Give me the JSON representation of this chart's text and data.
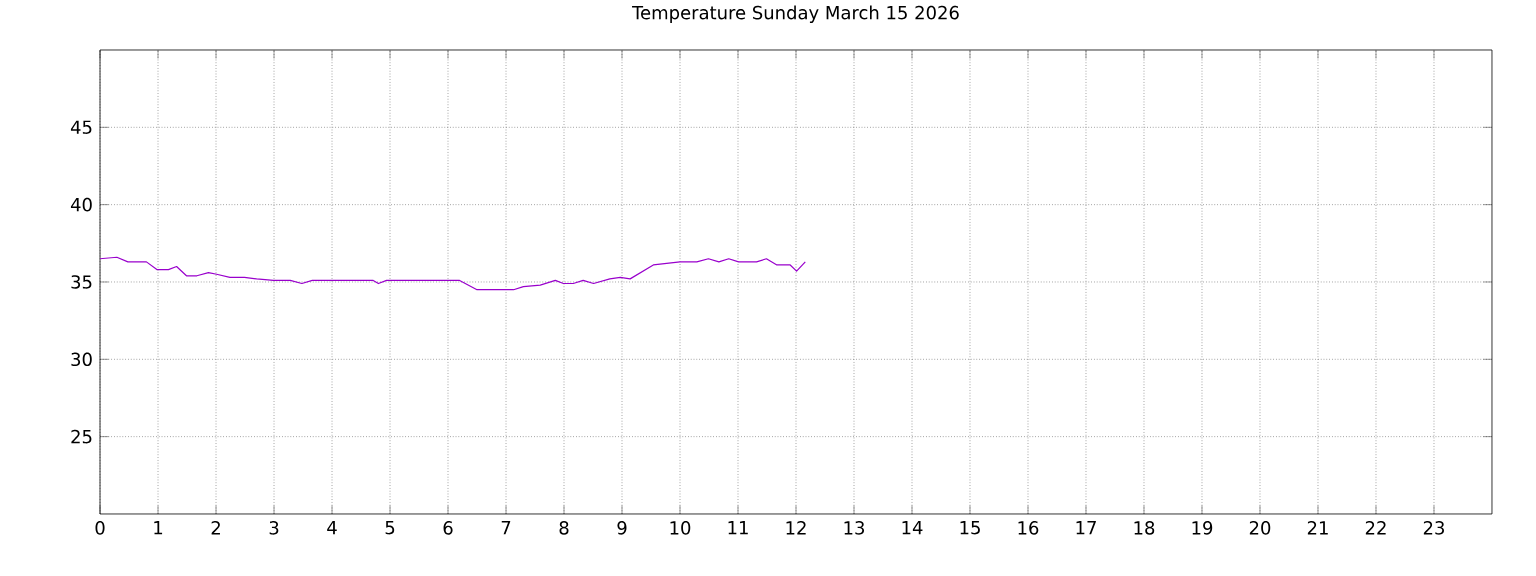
{
  "chart_data": {
    "type": "line",
    "title": "Temperature Sunday March 15 2026",
    "x": [
      0,
      0.29,
      0.48,
      0.8,
      0.98,
      1.18,
      1.32,
      1.49,
      1.67,
      1.87,
      2.01,
      2.24,
      2.49,
      2.7,
      2.99,
      3.28,
      3.48,
      3.66,
      4.71,
      4.8,
      4.94,
      6.2,
      6.5,
      7.13,
      7.3,
      7.59,
      7.85,
      7.99,
      8.16,
      8.33,
      8.51,
      8.79,
      8.97,
      9.14,
      9.54,
      10,
      10.29,
      10.49,
      10.67,
      10.84,
      11.01,
      11.32,
      11.49,
      11.67,
      11.9,
      12.01,
      12.16
    ],
    "series": [
      {
        "color": "#9900cc",
        "values": [
          36.5,
          36.6,
          36.3,
          36.3,
          35.8,
          35.8,
          36.0,
          35.4,
          35.4,
          35.6,
          35.5,
          35.3,
          35.3,
          35.2,
          35.1,
          35.1,
          34.9,
          35.1,
          35.1,
          34.9,
          35.1,
          35.1,
          34.5,
          34.5,
          34.7,
          34.8,
          35.1,
          34.9,
          34.9,
          35.1,
          34.9,
          35.2,
          35.3,
          35.2,
          36.1,
          36.3,
          36.3,
          36.5,
          36.3,
          36.5,
          36.3,
          36.3,
          36.5,
          36.1,
          36.1,
          35.7,
          36.3
        ]
      }
    ],
    "xlim": [
      0,
      24
    ],
    "xticks": [
      0,
      1,
      2,
      3,
      4,
      5,
      6,
      7,
      8,
      9,
      10,
      11,
      12,
      13,
      14,
      15,
      16,
      17,
      18,
      19,
      20,
      21,
      22,
      23
    ],
    "ylim": [
      20,
      50
    ],
    "yticks": [
      25,
      30,
      35,
      40,
      45
    ],
    "grid": true,
    "marker": "none",
    "line_style": "solid"
  }
}
